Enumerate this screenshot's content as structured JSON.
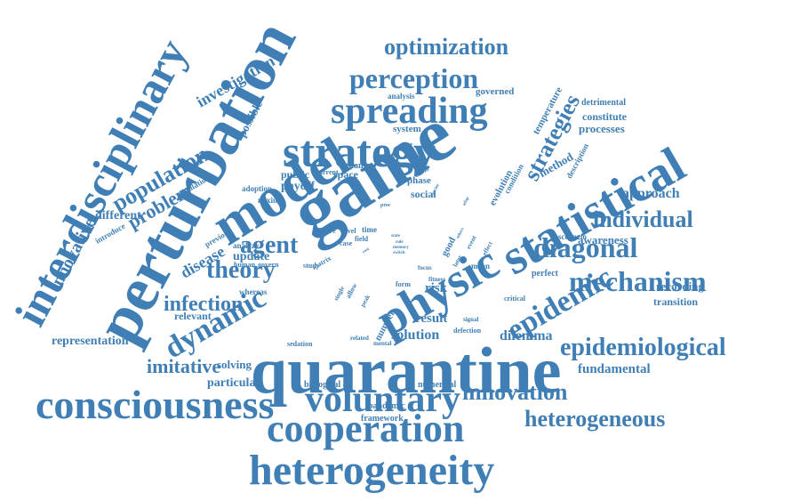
{
  "color": "#3f7fb5",
  "words": [
    {
      "text": "quarantine",
      "s": 74,
      "r": 0
    },
    {
      "text": "game",
      "s": 86,
      "r": -32
    },
    {
      "text": "perturbation",
      "s": 72,
      "r": -62
    },
    {
      "text": "heterogeneity",
      "s": 48,
      "r": 0
    },
    {
      "text": "model",
      "s": 64,
      "r": -32
    },
    {
      "text": "interdisciplinary",
      "s": 50,
      "r": -62
    },
    {
      "text": "consciousness",
      "s": 46,
      "r": 0
    },
    {
      "text": "cooperation",
      "s": 44,
      "r": 0
    },
    {
      "text": "statistical",
      "s": 56,
      "r": -30
    },
    {
      "text": "strategy",
      "s": 50,
      "r": 0
    },
    {
      "text": "physic",
      "s": 54,
      "r": -30
    },
    {
      "text": "spreading",
      "s": 42,
      "r": 0
    },
    {
      "text": "voluntary",
      "s": 42,
      "r": 0
    },
    {
      "text": "diagonal",
      "s": 32,
      "r": 0
    },
    {
      "text": "mechanism",
      "s": 32,
      "r": 0
    },
    {
      "text": "perception",
      "s": 32,
      "r": 0
    },
    {
      "text": "epidemic",
      "s": 34,
      "r": -30
    },
    {
      "text": "dynamic",
      "s": 34,
      "r": -30
    },
    {
      "text": "epidemiological",
      "s": 28,
      "r": 0
    },
    {
      "text": "individual",
      "s": 26,
      "r": 0
    },
    {
      "text": "heterogeneous",
      "s": 26,
      "r": 0
    },
    {
      "text": "innovation",
      "s": 26,
      "r": 0
    },
    {
      "text": "optimization",
      "s": 26,
      "r": 0
    },
    {
      "text": "population",
      "s": 26,
      "r": -30
    },
    {
      "text": "strategies",
      "s": 26,
      "r": -62
    },
    {
      "text": "agent",
      "s": 28,
      "r": 0
    },
    {
      "text": "theory",
      "s": 28,
      "r": 0
    },
    {
      "text": "infection",
      "s": 24,
      "r": 0
    },
    {
      "text": "imitative",
      "s": 22,
      "r": 0
    },
    {
      "text": "problem",
      "s": 22,
      "r": -30
    },
    {
      "text": "innovative",
      "s": 20,
      "r": -62
    },
    {
      "text": "investigation",
      "s": 18,
      "r": -30
    },
    {
      "text": "disease",
      "s": 18,
      "r": -30
    },
    {
      "text": "dilemma",
      "s": 16,
      "r": 0
    },
    {
      "text": "solution",
      "s": 16,
      "r": 0
    },
    {
      "text": "approach",
      "s": 16,
      "r": 0
    },
    {
      "text": "fundamental",
      "s": 15,
      "r": 0
    },
    {
      "text": "result",
      "s": 15,
      "r": 0
    },
    {
      "text": "representation",
      "s": 14,
      "r": 0
    },
    {
      "text": "particular",
      "s": 14,
      "r": 0
    },
    {
      "text": "different",
      "s": 14,
      "r": 0
    },
    {
      "text": "risk",
      "s": 15,
      "r": 0
    },
    {
      "text": "payoff",
      "s": 14,
      "r": 0
    },
    {
      "text": "update",
      "s": 14,
      "r": 0
    },
    {
      "text": "awareness",
      "s": 13,
      "r": 0
    },
    {
      "text": "recording",
      "s": 13,
      "r": 0
    },
    {
      "text": "processes",
      "s": 13,
      "r": 0
    },
    {
      "text": "transition",
      "s": 12,
      "r": 0
    },
    {
      "text": "solving",
      "s": 13,
      "r": 0
    },
    {
      "text": "relevant",
      "s": 12,
      "r": 0
    },
    {
      "text": "constitute",
      "s": 12,
      "r": 0
    },
    {
      "text": "method",
      "s": 13,
      "r": -30
    },
    {
      "text": "temperature",
      "s": 11,
      "r": -62
    },
    {
      "text": "possible",
      "s": 13,
      "r": -62
    },
    {
      "text": "public",
      "s": 12,
      "r": 0
    },
    {
      "text": "space",
      "s": 12,
      "r": 0
    },
    {
      "text": "social",
      "s": 12,
      "r": 0
    },
    {
      "text": "system",
      "s": 11,
      "r": 0
    },
    {
      "text": "governed",
      "s": 11,
      "r": 0
    },
    {
      "text": "detrimental",
      "s": 10,
      "r": 0
    },
    {
      "text": "perfect",
      "s": 10,
      "r": 0
    },
    {
      "text": "numerical",
      "s": 10,
      "r": 0
    },
    {
      "text": "biological",
      "s": 10,
      "r": 0
    },
    {
      "text": "framework",
      "s": 10,
      "r": 0
    },
    {
      "text": "pandemic",
      "s": 10,
      "r": 0
    },
    {
      "text": "good",
      "s": 11,
      "r": -62
    },
    {
      "text": "evolution",
      "s": 11,
      "r": -62
    },
    {
      "text": "number",
      "s": 11,
      "r": -62
    },
    {
      "text": "analysis",
      "s": 9,
      "r": 0
    },
    {
      "text": "scenario",
      "s": 9,
      "r": 0
    },
    {
      "text": "description",
      "s": 9,
      "r": -62
    },
    {
      "text": "condition",
      "s": 9,
      "r": -62
    },
    {
      "text": "phase",
      "s": 11,
      "r": 0
    },
    {
      "text": "change",
      "s": 10,
      "r": 0
    },
    {
      "text": "adoption",
      "s": 9,
      "r": 0
    },
    {
      "text": "mixing",
      "s": 9,
      "r": 0
    },
    {
      "text": "simulation",
      "s": 9,
      "r": -30
    },
    {
      "text": "introduce",
      "s": 9,
      "r": -30
    },
    {
      "text": "previous",
      "s": 9,
      "r": -30
    },
    {
      "text": "analyze",
      "s": 9,
      "r": 0
    },
    {
      "text": "human",
      "s": 8,
      "r": 0
    },
    {
      "text": "govern",
      "s": 8,
      "r": 0
    },
    {
      "text": "whereas",
      "s": 9,
      "r": 0
    },
    {
      "text": "study",
      "s": 8,
      "r": 0
    },
    {
      "text": "matrix",
      "s": 8,
      "r": -30
    },
    {
      "text": "mean",
      "s": 9,
      "r": 0
    },
    {
      "text": "fitness",
      "s": 7,
      "r": 0
    },
    {
      "text": "form",
      "s": 8,
      "r": 0
    },
    {
      "text": "focus",
      "s": 7,
      "r": 0
    },
    {
      "text": "case",
      "s": 8,
      "r": 0
    },
    {
      "text": "field",
      "s": 8,
      "r": 0
    },
    {
      "text": "time",
      "s": 9,
      "r": 0
    },
    {
      "text": "level",
      "s": 8,
      "r": 0
    },
    {
      "text": "more",
      "s": 8,
      "r": 0
    },
    {
      "text": "current",
      "s": 8,
      "r": 0
    },
    {
      "text": "adam",
      "s": 7,
      "r": -30
    },
    {
      "text": "proc",
      "s": 6,
      "r": 0
    },
    {
      "text": "critical",
      "s": 8,
      "r": 0
    },
    {
      "text": "signal",
      "s": 7,
      "r": 0
    },
    {
      "text": "defection",
      "s": 8,
      "r": 0
    },
    {
      "text": "sedation",
      "s": 8,
      "r": 0
    },
    {
      "text": "related",
      "s": 7,
      "r": 0
    },
    {
      "text": "mental",
      "s": 7,
      "r": 0
    },
    {
      "text": "peak",
      "s": 7,
      "r": -62
    },
    {
      "text": "allow",
      "s": 8,
      "r": -62
    },
    {
      "text": "single",
      "s": 7,
      "r": -62
    },
    {
      "text": "later",
      "s": 7,
      "r": -62
    },
    {
      "text": "event",
      "s": 7,
      "r": -62
    },
    {
      "text": "effect",
      "s": 7,
      "r": -62
    },
    {
      "text": "state",
      "s": 5,
      "r": 0
    },
    {
      "text": "rule",
      "s": 5,
      "r": 0
    },
    {
      "text": "memory",
      "s": 5,
      "r": 0
    },
    {
      "text": "switch",
      "s": 5,
      "r": 0
    },
    {
      "text": "others",
      "s": 5,
      "r": -62
    },
    {
      "text": "adap",
      "s": 5,
      "r": -62
    },
    {
      "text": "vaccine",
      "s": 5,
      "r": -62
    },
    {
      "text": "cost",
      "s": 5,
      "r": -30
    }
  ]
}
